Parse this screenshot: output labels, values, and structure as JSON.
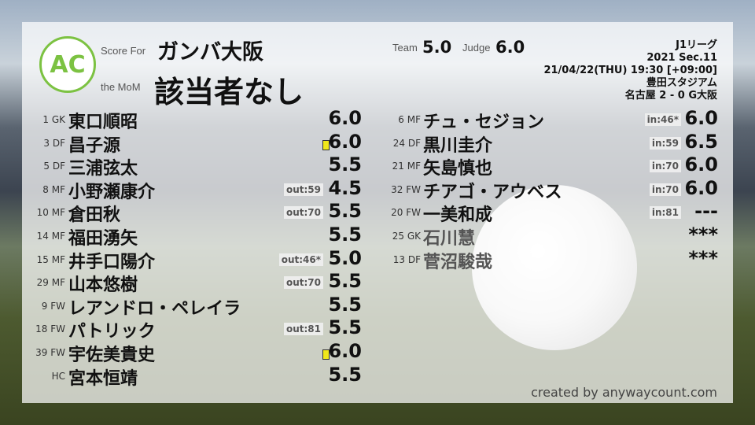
{
  "header": {
    "logo_text": "AC",
    "logo_ring": "ANYWAY COUNT",
    "score_for_label": "Score For",
    "team": "ガンバ大阪",
    "mom_label": "the MoM",
    "mom": "該当者なし",
    "team_label": "Team",
    "team_score": "5.0",
    "judge_label": "Judge",
    "judge_score": "6.0"
  },
  "match": {
    "league": "J1リーグ",
    "season": "2021 Sec.11",
    "datetime": "21/04/22(THU) 19:30 [+09:00]",
    "venue": "豊田スタジアム",
    "result": "名古屋 2 - 0 G大阪"
  },
  "left_players": [
    {
      "num": "1 GK",
      "name": "東口順昭",
      "badge": "",
      "score": "6.0",
      "yellow": false
    },
    {
      "num": "3 DF",
      "name": "昌子源",
      "badge": "",
      "score": "6.0",
      "yellow": true
    },
    {
      "num": "5 DF",
      "name": "三浦弦太",
      "badge": "",
      "score": "5.5",
      "yellow": false
    },
    {
      "num": "8 MF",
      "name": "小野瀬康介",
      "badge": "out:59",
      "score": "4.5",
      "yellow": false
    },
    {
      "num": "10 MF",
      "name": "倉田秋",
      "badge": "out:70",
      "score": "5.5",
      "yellow": false
    },
    {
      "num": "14 MF",
      "name": "福田湧矢",
      "badge": "",
      "score": "5.5",
      "yellow": false
    },
    {
      "num": "15 MF",
      "name": "井手口陽介",
      "badge": "out:46*",
      "score": "5.0",
      "yellow": false
    },
    {
      "num": "29 MF",
      "name": "山本悠樹",
      "badge": "out:70",
      "score": "5.5",
      "yellow": false
    },
    {
      "num": "9 FW",
      "name": "レアンドロ・ペレイラ",
      "badge": "",
      "score": "5.5",
      "yellow": false
    },
    {
      "num": "18 FW",
      "name": "パトリック",
      "badge": "out:81",
      "score": "5.5",
      "yellow": false
    },
    {
      "num": "39 FW",
      "name": "宇佐美貴史",
      "badge": "",
      "score": "6.0",
      "yellow": true
    },
    {
      "num": "HC",
      "name": "宮本恒靖",
      "badge": "",
      "score": "5.5",
      "yellow": false
    }
  ],
  "right_players": [
    {
      "num": "6 MF",
      "name": "チュ・セジョン",
      "badge": "in:46*",
      "score": "6.0",
      "sub": false
    },
    {
      "num": "24 DF",
      "name": "黒川圭介",
      "badge": "in:59",
      "score": "6.5",
      "sub": false
    },
    {
      "num": "21 MF",
      "name": "矢島慎也",
      "badge": "in:70",
      "score": "6.0",
      "sub": false
    },
    {
      "num": "32 FW",
      "name": "チアゴ・アウベス",
      "badge": "in:70",
      "score": "6.0",
      "sub": false
    },
    {
      "num": "20 FW",
      "name": "一美和成",
      "badge": "in:81",
      "score": "---",
      "sub": false
    },
    {
      "num": "25 GK",
      "name": "石川慧",
      "badge": "",
      "score": "***",
      "sub": true
    },
    {
      "num": "13 DF",
      "name": "菅沼駿哉",
      "badge": "",
      "score": "***",
      "sub": true
    }
  ],
  "footer": {
    "credit": "created by anywaycount.com"
  },
  "colors": {
    "logo_green": "#7cc242",
    "yellow_card": "#f0e81a"
  }
}
